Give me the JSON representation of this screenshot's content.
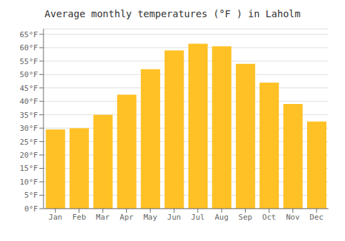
{
  "chart_data": {
    "type": "bar",
    "title": "Average monthly temperatures (°F ) in Laholm",
    "categories": [
      "Jan",
      "Feb",
      "Mar",
      "Apr",
      "May",
      "Jun",
      "Jul",
      "Aug",
      "Sep",
      "Oct",
      "Nov",
      "Dec"
    ],
    "values": [
      29.5,
      30.0,
      35.0,
      42.5,
      52.0,
      59.0,
      61.5,
      60.5,
      54.0,
      47.0,
      39.0,
      32.5
    ],
    "color": "#FFC125",
    "ylim": [
      0,
      67
    ],
    "yticks": [
      {
        "value": 0,
        "label": "0°F"
      },
      {
        "value": 5,
        "label": "5°F"
      },
      {
        "value": 10,
        "label": "10°F"
      },
      {
        "value": 15,
        "label": "15°F"
      },
      {
        "value": 20,
        "label": "20°F"
      },
      {
        "value": 25,
        "label": "25°F"
      },
      {
        "value": 30,
        "label": "30°F"
      },
      {
        "value": 35,
        "label": "35°F"
      },
      {
        "value": 40,
        "label": "40°F"
      },
      {
        "value": 45,
        "label": "45°F"
      },
      {
        "value": 50,
        "label": "50°F"
      },
      {
        "value": 55,
        "label": "55°F"
      },
      {
        "value": 60,
        "label": "60°F"
      },
      {
        "value": 65,
        "label": "65°F"
      }
    ],
    "grid": true
  }
}
